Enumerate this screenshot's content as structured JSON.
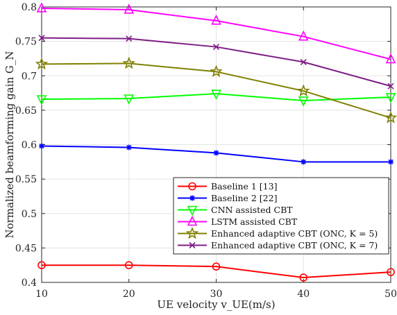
{
  "chart_data": {
    "type": "line",
    "xlabel": "UE velocity v_UE(m/s)",
    "ylabel": "Normalized beamforming gain G_N",
    "x": [
      10,
      20,
      30,
      40,
      50
    ],
    "xlim": [
      10,
      50
    ],
    "ylim": [
      0.4,
      0.8
    ],
    "xticks": [
      "10",
      "20",
      "30",
      "40",
      "50"
    ],
    "yticks": [
      "0.4",
      "0.45",
      "0.5",
      "0.55",
      "0.6",
      "0.65",
      "0.7",
      "0.75",
      "0.8"
    ],
    "grid": true,
    "legend_position": "bottom-right",
    "series": [
      {
        "name": "Baseline 1 [13]",
        "color": "#ff0000",
        "marker": "circle",
        "values": [
          0.425,
          0.425,
          0.423,
          0.407,
          0.415
        ]
      },
      {
        "name": "Baseline 2 [22]",
        "color": "#0000ff",
        "marker": "asterisk",
        "values": [
          0.598,
          0.596,
          0.588,
          0.575,
          0.575
        ]
      },
      {
        "name": "CNN assisted CBT",
        "color": "#00ff00",
        "marker": "triangle-down",
        "values": [
          0.666,
          0.667,
          0.674,
          0.664,
          0.669
        ]
      },
      {
        "name": "LSTM assisted CBT",
        "color": "#ff00ff",
        "marker": "triangle-up",
        "values": [
          0.798,
          0.796,
          0.78,
          0.757,
          0.724
        ]
      },
      {
        "name": "Enhanced adaptive CBT (ONC, K = 5)",
        "color": "#808000",
        "marker": "star",
        "values": [
          0.717,
          0.718,
          0.706,
          0.678,
          0.639
        ]
      },
      {
        "name": "Enhanced adaptive CBT (ONC, K = 7)",
        "color": "#7e1e86",
        "marker": "x",
        "values": [
          0.755,
          0.754,
          0.742,
          0.72,
          0.685
        ]
      }
    ]
  }
}
